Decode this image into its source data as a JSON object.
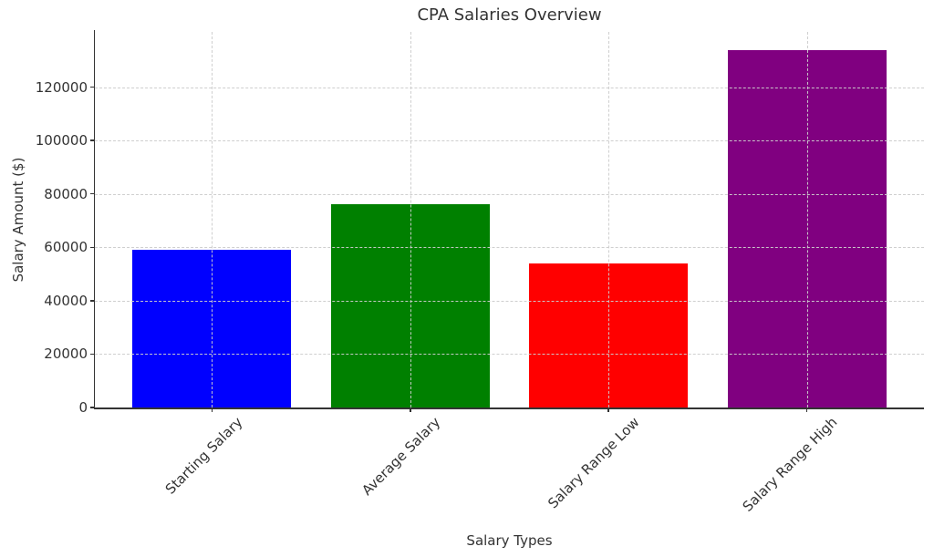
{
  "chart_data": {
    "type": "bar",
    "title": "CPA Salaries Overview",
    "xlabel": "Salary Types",
    "ylabel": "Salary Amount ($)",
    "categories": [
      "Starting Salary",
      "Average Salary",
      "Salary Range Low",
      "Salary Range High"
    ],
    "values": [
      59000,
      76000,
      54000,
      134000
    ],
    "bar_colors": [
      "#0000ff",
      "#008000",
      "#ff0000",
      "#800080"
    ],
    "yticks": [
      0,
      20000,
      40000,
      60000,
      80000,
      100000,
      120000
    ],
    "ytick_labels": [
      "0",
      "20000",
      "40000",
      "60000",
      "80000",
      "100000",
      "120000"
    ],
    "ylim": [
      0,
      140700
    ],
    "bar_width_fraction": 0.8,
    "grid": "dashed",
    "grid_color": "#cccccc",
    "grid_above_bars": true,
    "legend": "none",
    "colors": {
      "text": "#333333",
      "spine": "#333333",
      "background": "#ffffff"
    }
  }
}
